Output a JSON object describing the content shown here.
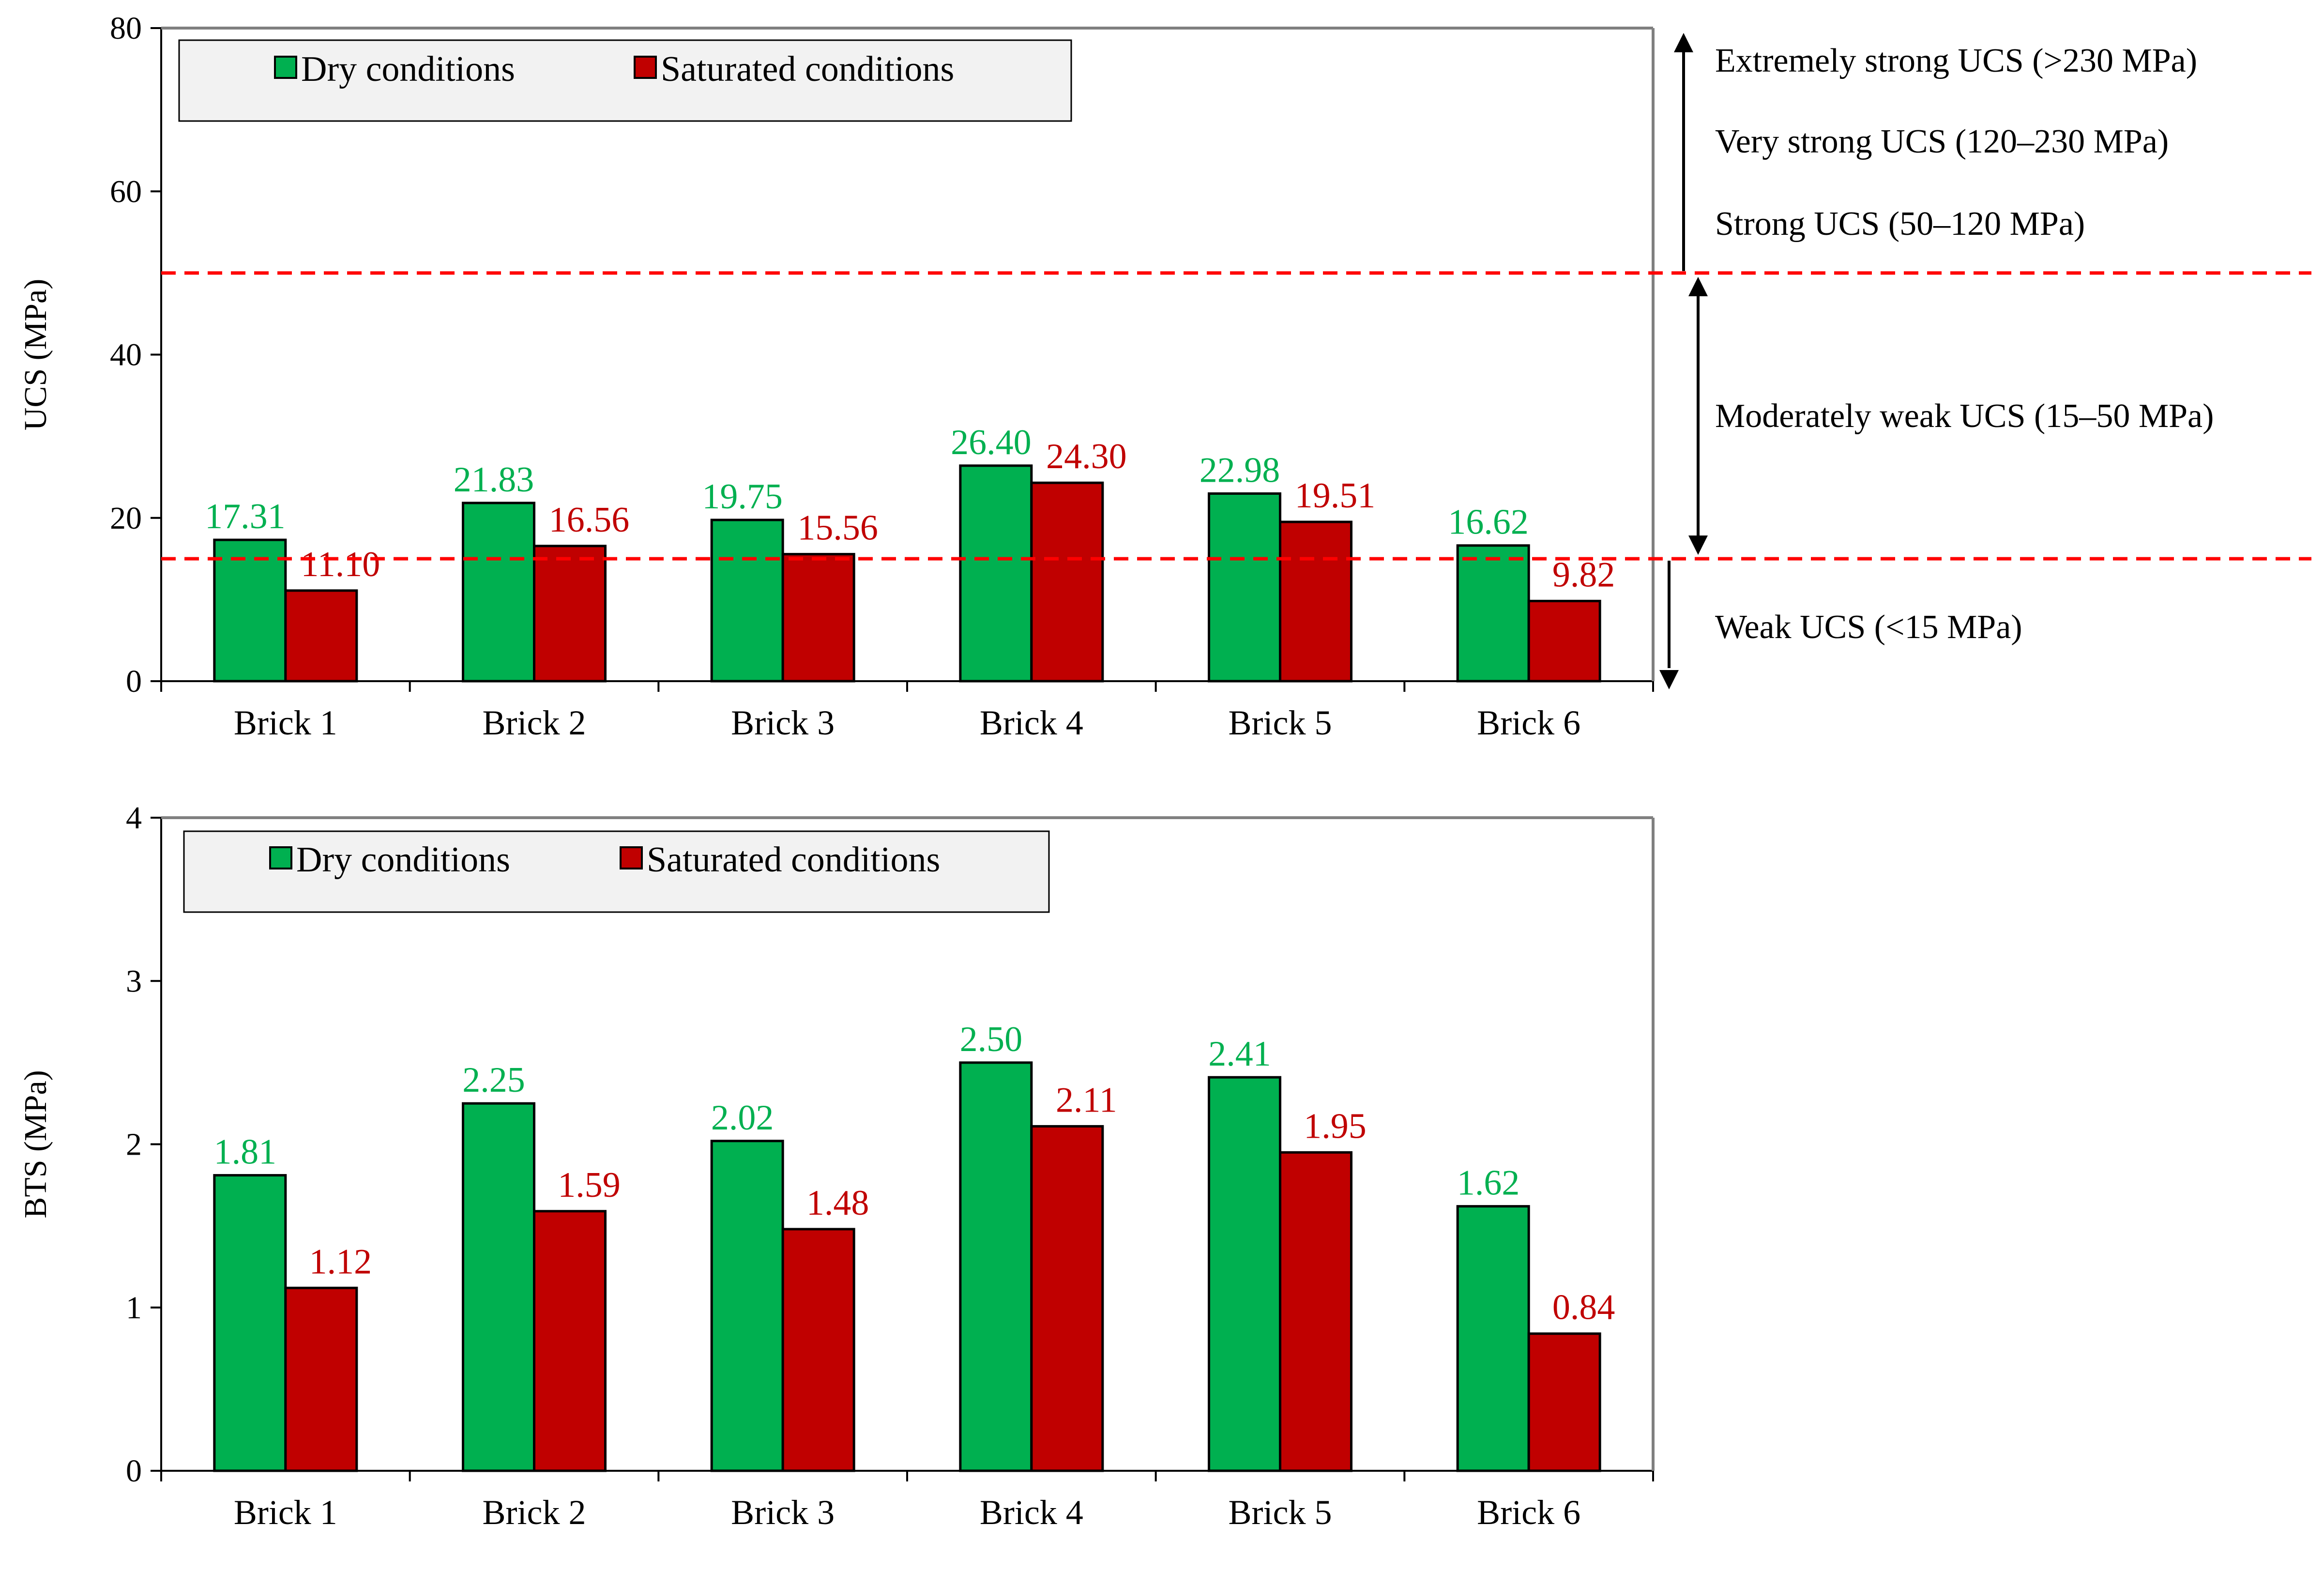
{
  "chart_data": [
    {
      "type": "bar",
      "title": "",
      "xlabel": "",
      "ylabel": "UCS (MPa)",
      "ylim": [
        0,
        80
      ],
      "yticks": [
        0,
        20,
        40,
        60,
        80
      ],
      "categories": [
        "Brick 1",
        "Brick 2",
        "Brick 3",
        "Brick 4",
        "Brick 5",
        "Brick 6"
      ],
      "series": [
        {
          "name": "Dry conditions",
          "values": [
            17.31,
            21.83,
            19.75,
            26.4,
            22.98,
            16.62
          ],
          "labels": [
            "17.31",
            "21.83",
            "19.75",
            "26.40",
            "22.98",
            "16.62"
          ]
        },
        {
          "name": "Saturated conditions",
          "values": [
            11.1,
            16.56,
            15.56,
            24.3,
            19.51,
            9.82
          ],
          "labels": [
            "11.10",
            "16.56",
            "15.56",
            "24.30",
            "19.51",
            "9.82"
          ]
        }
      ],
      "legend_position": "top-left",
      "threshold_lines": [
        15,
        50
      ],
      "classification": {
        "extremely_strong": "Extremely strong UCS (>230 MPa)",
        "very_strong": "Very strong UCS (120–230 MPa)",
        "strong": "Strong UCS (50–120 MPa)",
        "moderately_weak": "Moderately weak UCS (15–50 MPa)",
        "weak": "Weak UCS (<15 MPa)"
      }
    },
    {
      "type": "bar",
      "title": "",
      "xlabel": "",
      "ylabel": "BTS (MPa)",
      "ylim": [
        0,
        4
      ],
      "yticks": [
        0,
        1,
        2,
        3,
        4
      ],
      "categories": [
        "Brick 1",
        "Brick 2",
        "Brick 3",
        "Brick 4",
        "Brick 5",
        "Brick 6"
      ],
      "series": [
        {
          "name": "Dry conditions",
          "values": [
            1.81,
            2.25,
            2.02,
            2.5,
            2.41,
            1.62
          ],
          "labels": [
            "1.81",
            "2.25",
            "2.02",
            "2.50",
            "2.41",
            "1.62"
          ]
        },
        {
          "name": "Saturated conditions",
          "values": [
            1.12,
            1.59,
            1.48,
            2.11,
            1.95,
            0.84
          ],
          "labels": [
            "1.12",
            "1.59",
            "1.48",
            "2.11",
            "1.95",
            "0.84"
          ]
        }
      ],
      "legend_position": "top-left"
    }
  ],
  "colors": {
    "dry": "#00b050",
    "saturated": "#c00000",
    "dry_label": "#00b050",
    "saturated_label": "#c00000",
    "threshold": "#ff0000",
    "plot_border": "#808080",
    "legend_bg": "#f2f2f2"
  }
}
